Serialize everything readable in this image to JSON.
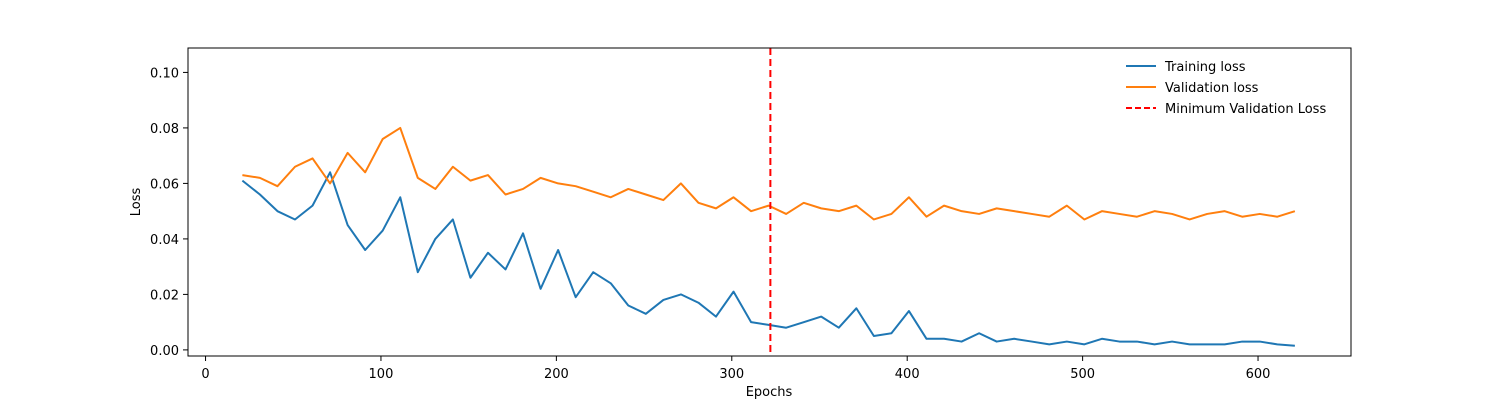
{
  "chart_data": {
    "type": "line",
    "title": "",
    "xlabel": "Epochs",
    "ylabel": "Loss",
    "xlim": [
      -10,
      653
    ],
    "ylim": [
      -0.0022,
      0.1088
    ],
    "xticks": [
      0,
      100,
      200,
      300,
      400,
      500,
      600
    ],
    "yticks": [
      0.0,
      0.02,
      0.04,
      0.06,
      0.08,
      0.1
    ],
    "ytick_labels": [
      "0.00",
      "0.02",
      "0.04",
      "0.06",
      "0.08",
      "0.10"
    ],
    "grid": false,
    "legend_position": "top-right",
    "series": [
      {
        "name": "Training loss",
        "color": "#1f77b4",
        "style": "solid",
        "x_start": 21,
        "x_step": 10,
        "values": [
          0.061,
          0.056,
          0.05,
          0.047,
          0.052,
          0.064,
          0.045,
          0.036,
          0.043,
          0.055,
          0.028,
          0.04,
          0.047,
          0.026,
          0.035,
          0.029,
          0.042,
          0.022,
          0.036,
          0.019,
          0.028,
          0.024,
          0.016,
          0.013,
          0.018,
          0.02,
          0.017,
          0.012,
          0.021,
          0.01,
          0.009,
          0.008,
          0.01,
          0.012,
          0.008,
          0.015,
          0.005,
          0.006,
          0.014,
          0.004,
          0.004,
          0.003,
          0.006,
          0.003,
          0.004,
          0.003,
          0.002,
          0.003,
          0.002,
          0.004,
          0.003,
          0.003,
          0.002,
          0.003,
          0.002,
          0.002,
          0.002,
          0.003,
          0.003,
          0.002,
          0.0015
        ]
      },
      {
        "name": "Validation loss",
        "color": "#ff7f0e",
        "style": "solid",
        "x_start": 21,
        "x_step": 10,
        "values": [
          0.063,
          0.062,
          0.059,
          0.066,
          0.069,
          0.06,
          0.071,
          0.064,
          0.076,
          0.08,
          0.062,
          0.058,
          0.066,
          0.061,
          0.063,
          0.056,
          0.058,
          0.062,
          0.06,
          0.059,
          0.057,
          0.055,
          0.058,
          0.056,
          0.054,
          0.06,
          0.053,
          0.051,
          0.055,
          0.05,
          0.052,
          0.049,
          0.053,
          0.051,
          0.05,
          0.052,
          0.047,
          0.049,
          0.055,
          0.048,
          0.052,
          0.05,
          0.049,
          0.051,
          0.05,
          0.049,
          0.048,
          0.052,
          0.047,
          0.05,
          0.049,
          0.048,
          0.05,
          0.049,
          0.047,
          0.049,
          0.05,
          0.048,
          0.049,
          0.048,
          0.05
        ]
      }
    ],
    "vline": {
      "name": "Minimum Validation Loss",
      "x": 322,
      "color": "#ff0000",
      "style": "dashed"
    }
  }
}
